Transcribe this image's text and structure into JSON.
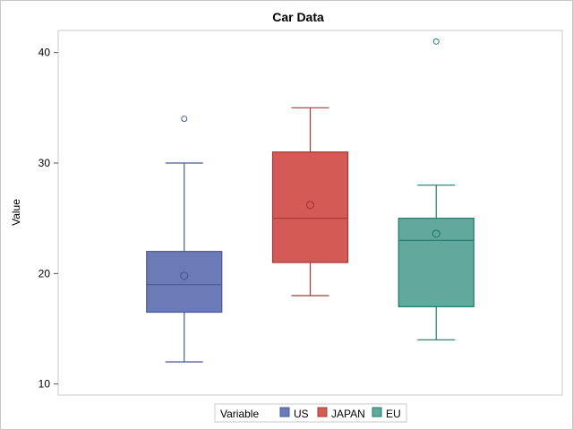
{
  "chart_data": {
    "type": "box",
    "title": "Car Data",
    "xlabel": "",
    "ylabel": "Value",
    "ylim": [
      9,
      42
    ],
    "y_ticks": [
      10,
      20,
      30,
      40
    ],
    "grid": false,
    "legend": {
      "title": "Variable",
      "placement": "bottom",
      "entries": [
        "US",
        "JAPAN",
        "EU"
      ]
    },
    "series": [
      {
        "name": "US",
        "color": "#6a7bb8",
        "edge": "#4a5a96",
        "whisker_low": 12,
        "q1": 16.5,
        "median": 19,
        "q3": 22,
        "whisker_high": 30,
        "mean": 19.8,
        "outliers": [
          34
        ]
      },
      {
        "name": "JAPAN",
        "color": "#d45a55",
        "edge": "#a43a36",
        "whisker_low": 18,
        "q1": 21,
        "median": 25,
        "q3": 31,
        "whisker_high": 35,
        "mean": 26.2,
        "outliers": []
      },
      {
        "name": "EU",
        "color": "#62a89c",
        "edge": "#1e7a6e",
        "whisker_low": 14,
        "q1": 17,
        "median": 23,
        "q3": 25,
        "whisker_high": 28,
        "mean": 23.6,
        "outliers": [
          41
        ]
      }
    ]
  }
}
